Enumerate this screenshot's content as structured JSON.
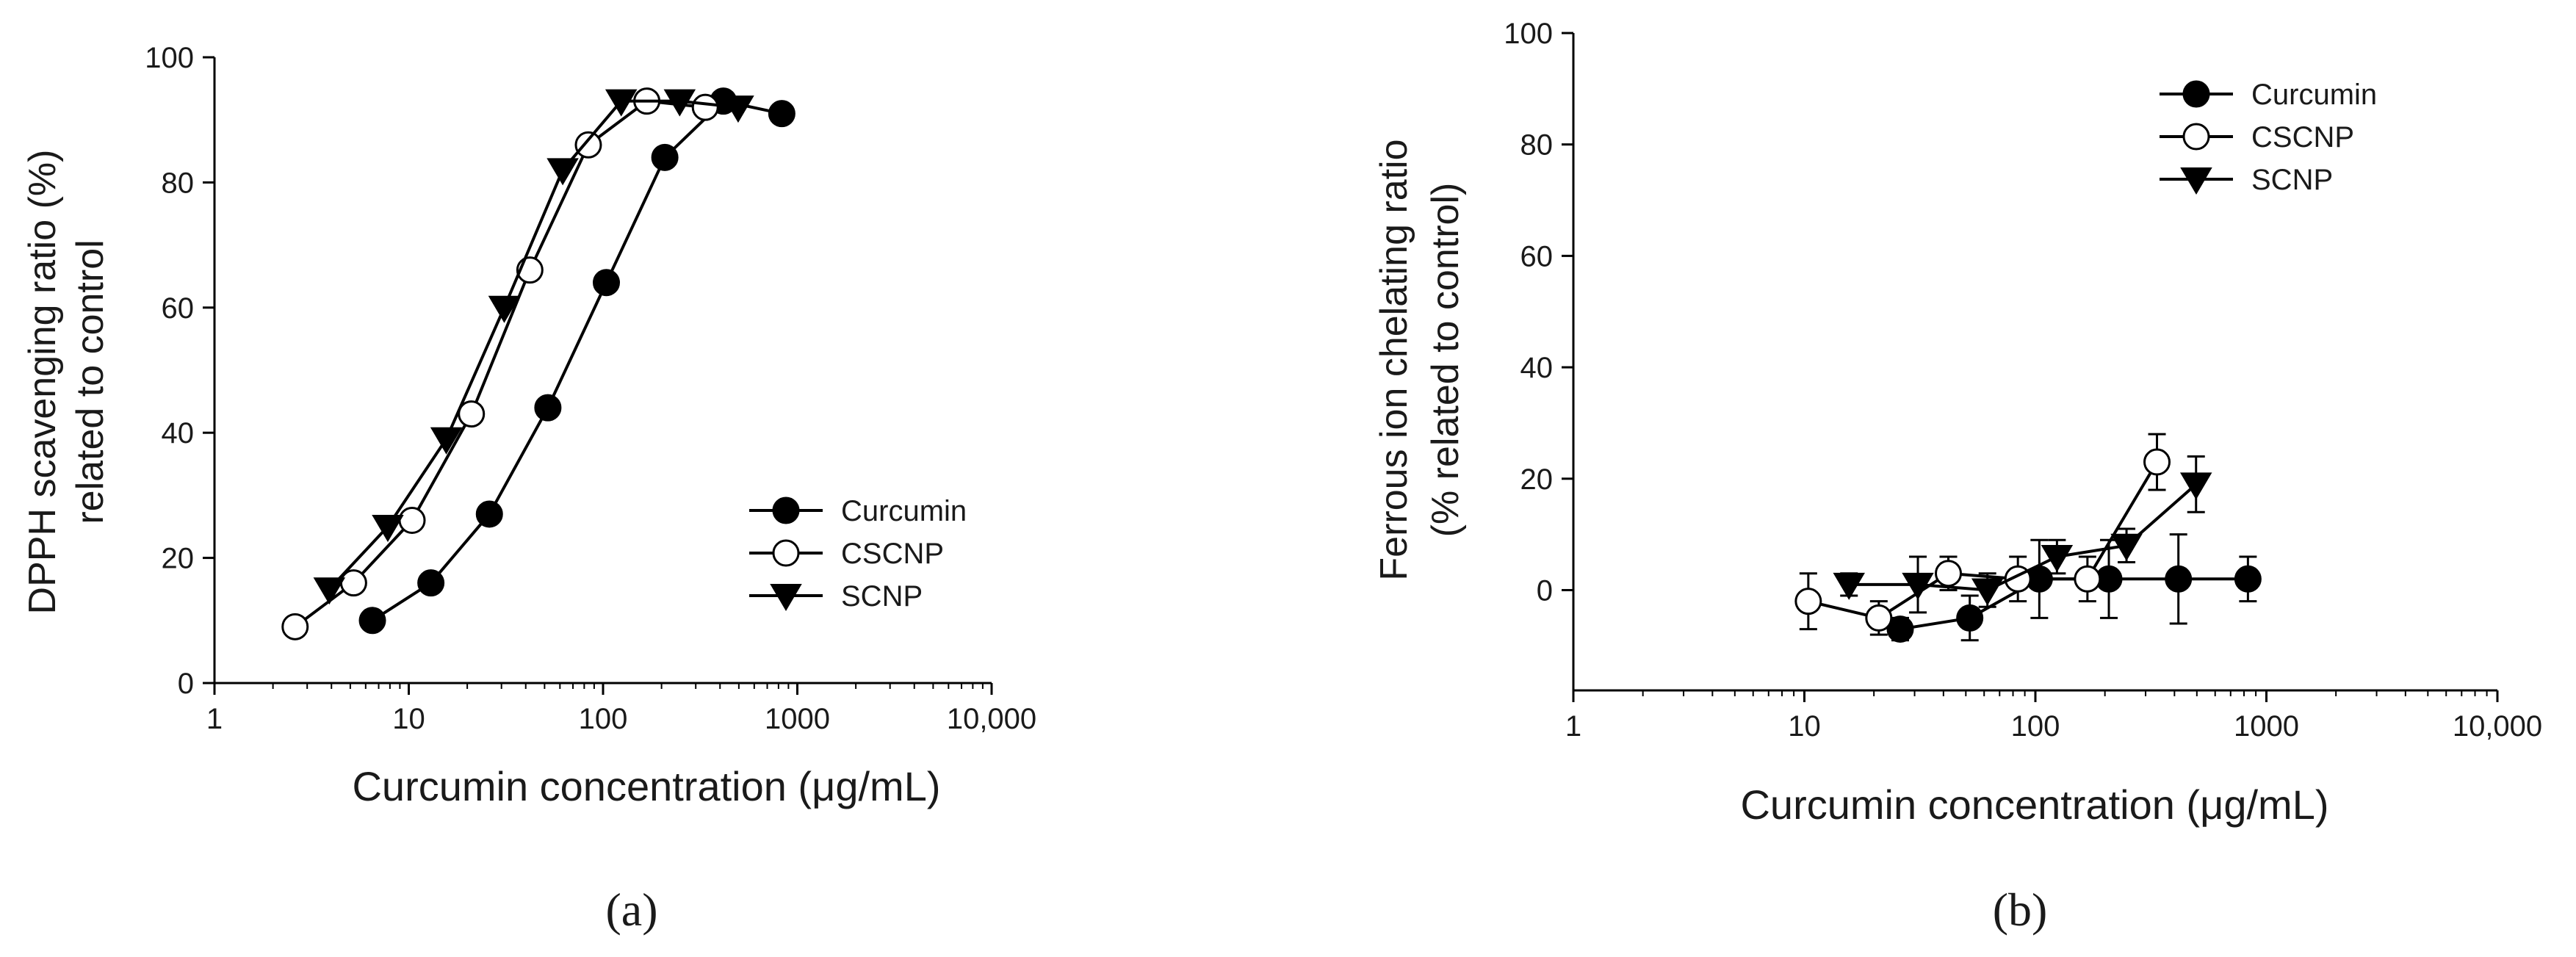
{
  "chart_data": [
    {
      "type": "scatter",
      "panel_label": "(a)",
      "xlabel": "Curcumin concentration (μg/mL)",
      "ylabel_line1": "DPPH scavenging ratio (%)",
      "ylabel_line2": "related to control",
      "x_scale": "log",
      "xlim": [
        1,
        10000
      ],
      "ylim": [
        0,
        100
      ],
      "x_ticks": [
        "1",
        "10",
        "100",
        "1000",
        "10,000"
      ],
      "y_ticks": [
        "0",
        "20",
        "40",
        "60",
        "80",
        "100"
      ],
      "grid": false,
      "legend_position": "bottom-right",
      "series": [
        {
          "name": "Curcumin",
          "marker": "filled-circle",
          "x": [
            6.5,
            13,
            26,
            52,
            104,
            208,
            416,
            832
          ],
          "y": [
            10,
            16,
            27,
            44,
            64,
            84,
            93,
            91
          ]
        },
        {
          "name": "CSCNP",
          "marker": "open-circle",
          "x": [
            2.6,
            5.2,
            10.4,
            21,
            42,
            84,
            168,
            336
          ],
          "y": [
            9,
            16,
            26,
            43,
            66,
            86,
            93,
            92
          ]
        },
        {
          "name": "SCNP",
          "marker": "filled-triangle-down",
          "x": [
            3.9,
            7.8,
            15.6,
            31,
            62,
            124,
            248,
            496
          ],
          "y": [
            15,
            25,
            39,
            60,
            82,
            93,
            93,
            92
          ]
        }
      ]
    },
    {
      "type": "scatter",
      "panel_label": "(b)",
      "xlabel": "Curcumin concentration (μg/mL)",
      "ylabel_line1": "Ferrous ion chelating ratio",
      "ylabel_line2": "(% related to control)",
      "x_scale": "log",
      "xlim": [
        1,
        10000
      ],
      "ylim": [
        -18,
        100
      ],
      "x_ticks": [
        "1",
        "10",
        "100",
        "1000",
        "10,000"
      ],
      "y_ticks": [
        "0",
        "20",
        "40",
        "60",
        "80",
        "100"
      ],
      "grid": false,
      "legend_position": "top-right",
      "series": [
        {
          "name": "Curcumin",
          "marker": "filled-circle",
          "x": [
            26,
            52,
            104,
            208,
            416,
            832
          ],
          "y": [
            -7,
            -5,
            2,
            2,
            2,
            2
          ],
          "err": [
            2,
            4,
            7,
            7,
            8,
            4
          ]
        },
        {
          "name": "CSCNP",
          "marker": "open-circle",
          "x": [
            10.4,
            21,
            42,
            84,
            168,
            336
          ],
          "y": [
            -2,
            -5,
            3,
            2,
            2,
            23
          ],
          "err": [
            5,
            3,
            3,
            4,
            4,
            5
          ]
        },
        {
          "name": "SCNP",
          "marker": "filled-triangle-down",
          "x": [
            15.6,
            31,
            62,
            124,
            248,
            496
          ],
          "y": [
            1,
            1,
            0,
            6,
            8,
            19
          ],
          "err": [
            2,
            5,
            3,
            3,
            3,
            5
          ]
        }
      ]
    }
  ]
}
